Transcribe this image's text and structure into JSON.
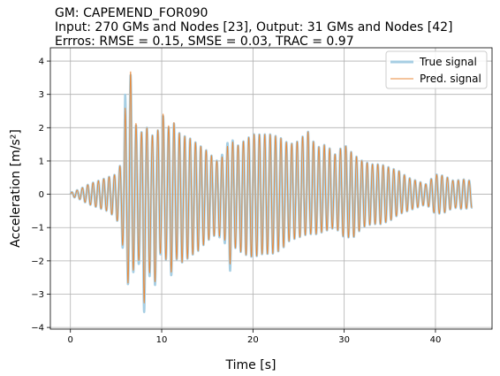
{
  "chart_data": {
    "type": "line",
    "title_lines": [
      "GM: CAPEMEND_FOR090",
      "Input: 270 GMs and Nodes [23], Output: 31 GMs and Nodes [42]",
      "Errros: RMSE = 0.15, SMSE = 0.03, TRAC = 0.97"
    ],
    "xlabel": "Time [s]",
    "ylabel": "Acceleration [m/s²]",
    "xlim": [
      -2.2,
      46.2
    ],
    "ylim": [
      -4.05,
      4.4
    ],
    "x_ticks": [
      0,
      10,
      20,
      30,
      40
    ],
    "x_tick_labels": [
      "0",
      "10",
      "20",
      "30",
      "40"
    ],
    "y_ticks": [
      4,
      3,
      2,
      1,
      0,
      -1,
      -2,
      -3,
      -4
    ],
    "y_tick_labels": [
      "4",
      "3",
      "2",
      "1",
      "0",
      "−1",
      "−2",
      "−3",
      "−4"
    ],
    "grid": true,
    "legend_position": "top-right",
    "series": [
      {
        "name": "True signal",
        "color": "#a6cee3",
        "x": [
          0,
          1,
          2,
          3,
          4,
          5,
          5.5,
          5.8,
          6.0,
          6.2,
          6.5,
          7.0,
          7.5,
          8.0,
          8.5,
          8.8,
          9.0,
          9.5,
          10.0,
          10.5,
          11.0,
          11.5,
          12.0,
          13.0,
          14.0,
          15.0,
          16.0,
          17.0,
          17.5,
          18.0,
          19.0,
          20.0,
          21.0,
          22.0,
          23.0,
          24.0,
          25.0,
          26.0,
          27.0,
          28.0,
          29.0,
          30.0,
          31.0,
          32.0,
          33.0,
          34.0,
          35.0,
          36.0,
          37.0,
          38.0,
          39.0,
          40.0,
          41.0,
          42.0,
          43.0,
          44.0
        ],
        "envelope_pos": [
          0.05,
          0.15,
          0.3,
          0.4,
          0.5,
          0.6,
          0.9,
          1.4,
          3.0,
          2.4,
          3.9,
          2.3,
          1.7,
          2.0,
          2.0,
          1.5,
          1.8,
          1.8,
          2.6,
          1.8,
          2.2,
          2.1,
          1.8,
          1.7,
          1.5,
          1.3,
          1.0,
          1.3,
          1.9,
          1.4,
          1.6,
          1.8,
          1.8,
          1.8,
          1.7,
          1.5,
          1.6,
          1.9,
          1.4,
          1.5,
          1.2,
          1.5,
          1.2,
          1.0,
          0.9,
          0.9,
          0.8,
          0.7,
          0.5,
          0.4,
          0.3,
          0.6,
          0.55,
          0.4,
          0.45,
          0.4
        ],
        "envelope_neg": [
          0.05,
          0.15,
          0.3,
          0.4,
          0.5,
          0.7,
          1.1,
          1.8,
          2.3,
          2.6,
          2.9,
          2.2,
          2.1,
          3.7,
          2.7,
          2.3,
          2.9,
          2.6,
          1.5,
          2.0,
          2.5,
          1.9,
          2.1,
          1.9,
          1.7,
          1.4,
          1.2,
          1.5,
          2.3,
          1.6,
          1.8,
          1.9,
          1.8,
          1.8,
          1.7,
          1.4,
          1.3,
          1.2,
          1.2,
          1.1,
          1.0,
          1.3,
          1.3,
          1.0,
          0.9,
          0.9,
          0.8,
          0.6,
          0.5,
          0.4,
          0.3,
          0.6,
          0.55,
          0.4,
          0.45,
          0.4
        ]
      },
      {
        "name": "Pred. signal",
        "color": "#e8893a",
        "x": [
          0,
          1,
          2,
          3,
          4,
          5,
          5.5,
          5.8,
          6.0,
          6.2,
          6.5,
          7.0,
          7.5,
          8.0,
          8.5,
          8.8,
          9.0,
          9.5,
          10.0,
          10.5,
          11.0,
          11.5,
          12.0,
          13.0,
          14.0,
          15.0,
          16.0,
          17.0,
          17.5,
          18.0,
          19.0,
          20.0,
          21.0,
          22.0,
          23.0,
          24.0,
          25.0,
          26.0,
          27.0,
          28.0,
          29.0,
          30.0,
          31.0,
          32.0,
          33.0,
          34.0,
          35.0,
          36.0,
          37.0,
          38.0,
          39.0,
          40.0,
          41.0,
          42.0,
          43.0,
          44.0
        ],
        "envelope_pos": [
          0.05,
          0.15,
          0.3,
          0.4,
          0.5,
          0.6,
          0.9,
          1.4,
          2.6,
          2.3,
          4.0,
          2.4,
          1.7,
          2.0,
          2.0,
          1.5,
          1.8,
          1.8,
          2.7,
          1.8,
          2.3,
          2.1,
          1.8,
          1.7,
          1.5,
          1.3,
          1.0,
          1.2,
          1.8,
          1.4,
          1.6,
          1.8,
          1.8,
          1.8,
          1.7,
          1.5,
          1.6,
          1.9,
          1.4,
          1.5,
          1.2,
          1.5,
          1.2,
          1.0,
          0.9,
          0.9,
          0.8,
          0.7,
          0.5,
          0.4,
          0.3,
          0.6,
          0.55,
          0.4,
          0.45,
          0.4
        ],
        "envelope_neg": [
          0.05,
          0.15,
          0.3,
          0.4,
          0.5,
          0.7,
          1.1,
          1.7,
          2.0,
          2.5,
          3.0,
          2.1,
          2.0,
          3.4,
          2.6,
          2.2,
          2.8,
          2.5,
          1.5,
          2.0,
          2.4,
          1.9,
          2.1,
          1.9,
          1.7,
          1.4,
          1.2,
          1.4,
          2.1,
          1.6,
          1.8,
          1.9,
          1.8,
          1.8,
          1.7,
          1.4,
          1.3,
          1.2,
          1.2,
          1.1,
          1.0,
          1.3,
          1.3,
          1.0,
          0.9,
          0.9,
          0.8,
          0.6,
          0.5,
          0.4,
          0.3,
          0.6,
          0.55,
          0.4,
          0.45,
          0.4
        ],
        "oscillation_hz": 1.7
      }
    ]
  }
}
